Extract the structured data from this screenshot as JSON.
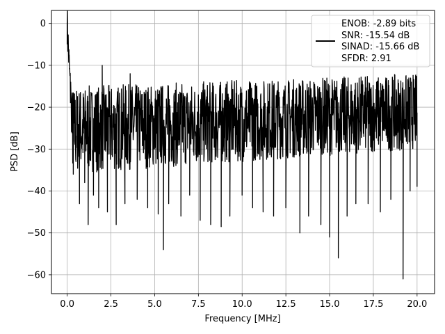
{
  "chart_data": {
    "type": "line",
    "xlabel": "Frequency [MHz]",
    "ylabel": "PSD [dB]",
    "xlim": [
      -0.9,
      21.0
    ],
    "ylim": [
      -64.5,
      3.1
    ],
    "xticks": [
      0.0,
      2.5,
      5.0,
      7.5,
      10.0,
      12.5,
      15.0,
      17.5,
      20.0
    ],
    "xtick_labels": [
      "0.0",
      "2.5",
      "5.0",
      "7.5",
      "10.0",
      "12.5",
      "15.0",
      "17.5",
      "20.0"
    ],
    "yticks": [
      0,
      -10,
      -20,
      -30,
      -40,
      -50,
      -60
    ],
    "ytick_labels": [
      "0",
      "−10",
      "−20",
      "−30",
      "−40",
      "−50",
      "−60"
    ],
    "grid": true,
    "legend_position": "top-right",
    "legend_lines": [
      "ENOB: -2.89 bits",
      "SNR: -15.54 dB",
      "SINAD: -15.66 dB",
      "SFDR: 2.91"
    ],
    "series": [
      {
        "color": "#000000",
        "noise_floor": {
          "f_start": 0.0,
          "f_end": 20.0,
          "upper_db": [
            -15,
            -12
          ],
          "lower_db": [
            -36,
            -30
          ]
        },
        "x": [
          0.0,
          0.02,
          0.05,
          0.1,
          0.2,
          0.35,
          0.5,
          0.7,
          1.0,
          1.2,
          1.5,
          1.8,
          2.0,
          2.3,
          2.8,
          3.3,
          3.6,
          4.0,
          4.6,
          5.2,
          5.5,
          5.8,
          6.5,
          7.0,
          7.6,
          8.2,
          8.8,
          9.3,
          10.0,
          10.6,
          11.2,
          11.8,
          12.5,
          13.3,
          13.8,
          14.5,
          15.0,
          15.5,
          16.0,
          16.5,
          17.2,
          17.9,
          18.5,
          19.2,
          19.6,
          20.0
        ],
        "y": [
          0.0,
          -1.5,
          -5.0,
          -8.0,
          -14.0,
          -36.0,
          -33.0,
          -43.0,
          -38.0,
          -48.0,
          -41.0,
          -44.0,
          -10.0,
          -45.0,
          -48.0,
          -43.0,
          -12.0,
          -42.0,
          -44.0,
          -45.5,
          -54.0,
          -43.0,
          -46.0,
          -41.0,
          -47.0,
          -48.0,
          -48.5,
          -46.0,
          -41.0,
          -44.0,
          -45.0,
          -46.0,
          -44.0,
          -50.0,
          -46.0,
          -48.0,
          -51.0,
          -56.0,
          -46.0,
          -43.0,
          -43.0,
          -45.0,
          -42.0,
          -61.0,
          -40.0,
          -39.0
        ]
      }
    ]
  }
}
